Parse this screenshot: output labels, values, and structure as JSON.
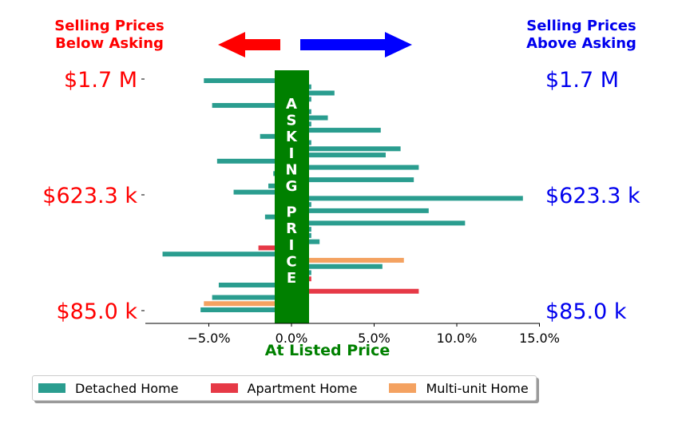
{
  "chart_data": {
    "type": "bar",
    "orientation": "horizontal",
    "headers": {
      "left": [
        "Selling Prices",
        "Below Asking"
      ],
      "right": [
        "Selling Prices",
        "Above Asking"
      ]
    },
    "band_label": "ASKING PRICE",
    "xlabel": "At Listed Price",
    "x_ticks": [
      "−5.0%",
      "0.0%",
      "5.0%",
      "10.0%",
      "15.0%"
    ],
    "x_tick_values": [
      -5,
      0,
      5,
      10,
      15
    ],
    "xlim": [
      -8.8,
      15
    ],
    "y_tick_labels": [
      "$1.7 M",
      "$623.3 k",
      "$85.0 k"
    ],
    "y_tick_labels_right": [
      "$1.7 M",
      "$623.3 k",
      "$85.0 k"
    ],
    "series": [
      {
        "name": "Detached Home",
        "color": "#2a9d8f"
      },
      {
        "name": "Apartment Home",
        "color": "#e63946"
      },
      {
        "name": "Multi-unit Home",
        "color": "#f4a261"
      }
    ],
    "bars": [
      {
        "series": 0,
        "value": -5.3
      },
      {
        "series": 0,
        "value": 1.2
      },
      {
        "series": 0,
        "value": 2.6
      },
      {
        "series": 0,
        "value": 1.2
      },
      {
        "series": 0,
        "value": -4.8
      },
      {
        "series": 0,
        "value": 1.2
      },
      {
        "series": 0,
        "value": 2.2
      },
      {
        "series": 0,
        "value": 1.2
      },
      {
        "series": 0,
        "value": 5.4
      },
      {
        "series": 0,
        "value": -1.9
      },
      {
        "series": 0,
        "value": 1.2
      },
      {
        "series": 0,
        "value": 6.6
      },
      {
        "series": 0,
        "value": 5.7
      },
      {
        "series": 0,
        "value": -4.5
      },
      {
        "series": 0,
        "value": 7.7
      },
      {
        "series": 0,
        "value": -1.1
      },
      {
        "series": 0,
        "value": 7.4
      },
      {
        "series": 0,
        "value": -1.4
      },
      {
        "series": 0,
        "value": -3.5
      },
      {
        "series": 0,
        "value": 14.0
      },
      {
        "series": 0,
        "value": 1.2
      },
      {
        "series": 0,
        "value": 8.3
      },
      {
        "series": 0,
        "value": -1.6
      },
      {
        "series": 0,
        "value": 10.5
      },
      {
        "series": 0,
        "value": 1.2
      },
      {
        "series": 0,
        "value": 1.2
      },
      {
        "series": 0,
        "value": 1.7
      },
      {
        "series": 1,
        "value": -2.0
      },
      {
        "series": 0,
        "value": -7.8
      },
      {
        "series": 2,
        "value": 6.8
      },
      {
        "series": 0,
        "value": 5.5
      },
      {
        "series": 0,
        "value": 1.2
      },
      {
        "series": 1,
        "value": 1.2
      },
      {
        "series": 0,
        "value": -4.4
      },
      {
        "series": 1,
        "value": 7.7
      },
      {
        "series": 0,
        "value": -4.8
      },
      {
        "series": 2,
        "value": -5.3
      },
      {
        "series": 0,
        "value": -5.5
      }
    ]
  }
}
